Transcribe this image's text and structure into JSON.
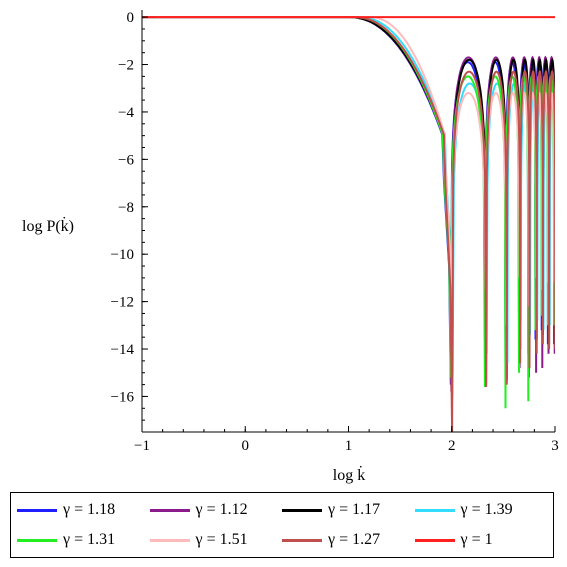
{
  "chart_data": {
    "type": "line",
    "xlabel": "log k̇",
    "ylabel": "log P(k̇)",
    "xlim": [
      -1,
      3
    ],
    "ylim": [
      -17.5,
      0.3
    ],
    "x_ticks": [
      -1,
      0,
      1,
      2,
      3
    ],
    "y_ticks": [
      0,
      -2,
      -4,
      -6,
      -8,
      -10,
      -12,
      -14,
      -16
    ],
    "grid": false,
    "legend_position": "bottom",
    "series": [
      {
        "name": "γ = 1.18",
        "color": "#1f1fff",
        "dip_start": 1.0,
        "peak": -1.9,
        "depths": [
          -15.5,
          -13.5,
          -14.5,
          -13.8,
          -14.2,
          -13.6,
          -13.2,
          -13.8
        ]
      },
      {
        "name": "γ = 1.12",
        "color": "#8b1a8b",
        "dip_start": 1.0,
        "peak": -1.7,
        "depths": [
          -15.8,
          -14.8,
          -15.5,
          -14.8,
          -15.2,
          -15.0,
          -14.8,
          -14.2
        ]
      },
      {
        "name": "γ = 1.17",
        "color": "#000000",
        "dip_start": 1.0,
        "peak": -1.8,
        "depths": [
          -16.0,
          -15.5,
          -15.3,
          -14.0,
          -14.6,
          -13.6,
          -13.4,
          -13.8
        ]
      },
      {
        "name": "γ = 1.39",
        "color": "#33ddff",
        "dip_start": 1.1,
        "peak": -2.8,
        "depths": [
          -15.0,
          -14.2,
          -14.6,
          -12.8,
          -13.4,
          -12.8,
          -13.2,
          -13.0
        ]
      },
      {
        "name": "γ = 1.31",
        "color": "#22ee22",
        "dip_start": 1.05,
        "peak": -2.5,
        "depths": [
          -15.2,
          -15.6,
          -16.5,
          -15.0,
          -16.2,
          -13.2,
          -12.6,
          -13.0
        ]
      },
      {
        "name": "γ = 1.51",
        "color": "#ffbbbb",
        "dip_start": 1.2,
        "peak": -3.2,
        "depths": [
          -14.0,
          -11.6,
          -13.0,
          -11.0,
          -12.2,
          -11.0,
          -11.5,
          -11.2
        ]
      },
      {
        "name": "γ = 1.27",
        "color": "#c0504d",
        "dip_start": 1.05,
        "peak": -2.3,
        "depths": [
          -17.5,
          -15.6,
          -15.5,
          -14.6,
          -14.8,
          -14.2,
          -13.8,
          -14.0
        ]
      },
      {
        "name": "γ = 1",
        "color": "#ff2020",
        "flat": true
      }
    ]
  }
}
